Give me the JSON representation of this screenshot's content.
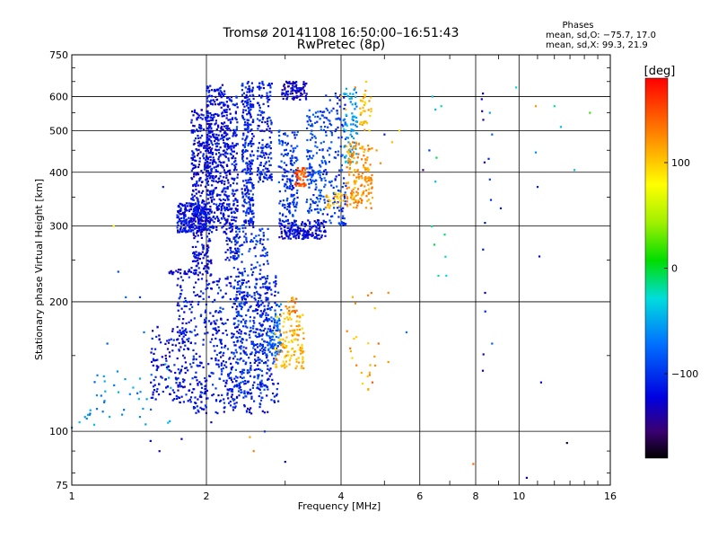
{
  "chart_data": {
    "type": "scatter",
    "title": "Tromsø 20141108 16:50:00–16:51:43",
    "subtitle": "RwPretec (8p)",
    "xlabel": "Frequency [MHz]",
    "ylabel": "Stationary phase Virtual Height [km]",
    "x_scale": "log",
    "y_scale": "log",
    "xlim": [
      1,
      16
    ],
    "ylim": [
      75,
      750
    ],
    "xticks": [
      1,
      2,
      4,
      6,
      8,
      10,
      16
    ],
    "xtick_labels": [
      "1",
      "2",
      "4",
      "6",
      "8",
      "10",
      "16"
    ],
    "yticks": [
      75,
      100,
      200,
      300,
      400,
      500,
      600,
      750
    ],
    "ytick_labels": [
      "75",
      "100",
      "200",
      "300",
      "400",
      "500",
      "600",
      "750"
    ],
    "grid": true,
    "phases": {
      "heading": "Phases",
      "o_line": "mean, sd,O: −75.7, 17.0",
      "x_line": "mean, sd,X:  99.3, 21.9"
    },
    "colorbar": {
      "label": "[deg]",
      "range": [
        -180,
        180
      ],
      "ticks": [
        100,
        0,
        -100
      ],
      "tick_labels": [
        "100",
        "0",
        "−100"
      ],
      "colormap": "rainbow"
    },
    "clusters": [
      {
        "x": [
          1.72,
          2.0
        ],
        "y": [
          290,
          340
        ],
        "phase": -118,
        "n": 240
      },
      {
        "x": [
          1.72,
          2.9
        ],
        "y": [
          110,
          230
        ],
        "phase": -112,
        "n": 650
      },
      {
        "x": [
          1.5,
          1.8
        ],
        "y": [
          118,
          175
        ],
        "phase": -120,
        "n": 120
      },
      {
        "x": [
          1.85,
          2.05
        ],
        "y": [
          230,
          560
        ],
        "phase": -122,
        "n": 360
      },
      {
        "x": [
          2.0,
          2.2
        ],
        "y": [
          290,
          640
        ],
        "phase": -118,
        "n": 350
      },
      {
        "x": [
          2.2,
          2.35
        ],
        "y": [
          250,
          600
        ],
        "phase": -115,
        "n": 260
      },
      {
        "x": [
          2.4,
          2.55
        ],
        "y": [
          300,
          650
        ],
        "phase": -108,
        "n": 270
      },
      {
        "x": [
          2.6,
          2.8
        ],
        "y": [
          380,
          650
        ],
        "phase": -110,
        "n": 150
      },
      {
        "x": [
          2.3,
          2.75
        ],
        "y": [
          120,
          300
        ],
        "phase": -100,
        "n": 330
      },
      {
        "x": [
          2.75,
          2.95
        ],
        "y": [
          150,
          200
        ],
        "phase": -78,
        "n": 80
      },
      {
        "x": [
          2.9,
          3.7
        ],
        "y": [
          280,
          310
        ],
        "phase": -122,
        "n": 180
      },
      {
        "x": [
          2.9,
          3.2
        ],
        "y": [
          300,
          500
        ],
        "phase": -100,
        "n": 160
      },
      {
        "x": [
          2.95,
          3.35
        ],
        "y": [
          590,
          650
        ],
        "phase": -128,
        "n": 90
      },
      {
        "x": [
          3.15,
          3.35
        ],
        "y": [
          370,
          410
        ],
        "phase": 145,
        "n": 45
      },
      {
        "x": [
          3.35,
          3.7
        ],
        "y": [
          320,
          560
        ],
        "phase": -92,
        "n": 160
      },
      {
        "x": [
          3.7,
          4.1
        ],
        "y": [
          300,
          610
        ],
        "phase": -98,
        "n": 130
      },
      {
        "x": [
          3.7,
          4.1
        ],
        "y": [
          330,
          360
        ],
        "phase": 108,
        "n": 30
      },
      {
        "x": [
          4.05,
          4.35
        ],
        "y": [
          420,
          630
        ],
        "phase": -55,
        "n": 80
      },
      {
        "x": [
          4.1,
          4.7
        ],
        "y": [
          330,
          470
        ],
        "phase": 120,
        "n": 170
      },
      {
        "x": [
          4.4,
          4.7
        ],
        "y": [
          500,
          620
        ],
        "phase": 108,
        "n": 35
      },
      {
        "x": [
          2.85,
          3.3
        ],
        "y": [
          140,
          190
        ],
        "phase": 108,
        "n": 130
      },
      {
        "x": [
          3.0,
          3.2
        ],
        "y": [
          185,
          205
        ],
        "phase": 125,
        "n": 18
      },
      {
        "x": [
          1.05,
          1.7
        ],
        "y": [
          100,
          145
        ],
        "phase": -60,
        "n": 40
      },
      {
        "x": [
          1.65,
          1.95
        ],
        "y": [
          232,
          238
        ],
        "phase": -125,
        "n": 30
      },
      {
        "x": [
          4.1,
          4.8
        ],
        "y": [
          118,
          210
        ],
        "phase": 115,
        "n": 22
      },
      {
        "x": [
          6.3,
          7.0
        ],
        "y": [
          230,
          580
        ],
        "phase": -20,
        "n": 7
      },
      {
        "x": [
          8.2,
          8.4
        ],
        "y": [
          120,
          620
        ],
        "phase": -125,
        "n": 9
      }
    ],
    "points": [
      [
        1.0,
        102,
        -60
      ],
      [
        1.04,
        105,
        -40
      ],
      [
        1.07,
        108,
        -55
      ],
      [
        1.1,
        112,
        -50
      ],
      [
        1.14,
        135,
        -65
      ],
      [
        1.2,
        160,
        -80
      ],
      [
        1.24,
        300,
        80
      ],
      [
        1.27,
        235,
        -90
      ],
      [
        1.32,
        205,
        -75
      ],
      [
        1.42,
        205,
        -95
      ],
      [
        1.45,
        170,
        -70
      ],
      [
        1.5,
        95,
        -125
      ],
      [
        1.57,
        90,
        -130
      ],
      [
        1.6,
        370,
        -110
      ],
      [
        1.76,
        96,
        -125
      ],
      [
        2.05,
        105,
        -130
      ],
      [
        2.5,
        97,
        115
      ],
      [
        2.55,
        90,
        130
      ],
      [
        2.3,
        118,
        -90
      ],
      [
        2.7,
        100,
        -100
      ],
      [
        3.0,
        85,
        -120
      ],
      [
        4.0,
        600,
        115
      ],
      [
        4.1,
        560,
        100
      ],
      [
        4.3,
        630,
        130
      ],
      [
        4.55,
        650,
        100
      ],
      [
        4.8,
        450,
        120
      ],
      [
        4.9,
        420,
        125
      ],
      [
        5.0,
        490,
        -110
      ],
      [
        5.2,
        470,
        105
      ],
      [
        5.1,
        210,
        125
      ],
      [
        4.7,
        130,
        145
      ],
      [
        4.6,
        125,
        110
      ],
      [
        4.85,
        160,
        140
      ],
      [
        5.1,
        145,
        120
      ],
      [
        5.4,
        500,
        90
      ],
      [
        5.6,
        170,
        -70
      ],
      [
        6.1,
        405,
        -150
      ],
      [
        6.4,
        600,
        -40
      ],
      [
        6.6,
        230,
        -20
      ],
      [
        6.5,
        560,
        -40
      ],
      [
        6.3,
        450,
        -95
      ],
      [
        6.7,
        570,
        -20
      ],
      [
        7.9,
        84,
        140
      ],
      [
        8.3,
        610,
        -125
      ],
      [
        8.55,
        430,
        -105
      ],
      [
        8.6,
        385,
        -95
      ],
      [
        8.65,
        345,
        -100
      ],
      [
        8.7,
        490,
        -80
      ],
      [
        8.6,
        550,
        -50
      ],
      [
        8.7,
        160,
        -80
      ],
      [
        8.4,
        190,
        -110
      ],
      [
        9.1,
        330,
        -110
      ],
      [
        9.85,
        630,
        -30
      ],
      [
        10.4,
        78,
        -130
      ],
      [
        10.9,
        570,
        120
      ],
      [
        11.1,
        255,
        -130
      ],
      [
        10.9,
        445,
        -60
      ],
      [
        11.0,
        370,
        -110
      ],
      [
        11.2,
        130,
        -120
      ],
      [
        12.0,
        570,
        -20
      ],
      [
        12.4,
        510,
        -40
      ],
      [
        12.8,
        94,
        -170
      ],
      [
        13.3,
        405,
        -40
      ],
      [
        14.4,
        550,
        20
      ]
    ]
  }
}
